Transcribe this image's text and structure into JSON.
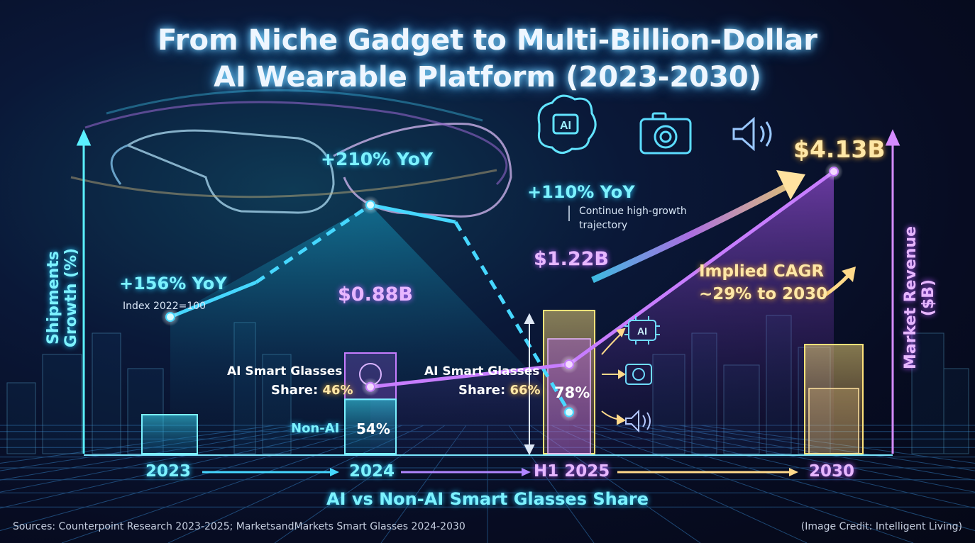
{
  "title_line1": "From Niche Gadget to Multi-Billion-Dollar",
  "title_line2": "AI Wearable Platform (2023-2030)",
  "left_axis_label": "Shipments Growth (%)",
  "right_axis_label": "Market Revenue ($B)",
  "x_axis_title": "AI vs Non-AI Smart Glasses Share",
  "sources": "Sources: Counterpoint Research 2023-2025; MarketsandMarkets Smart Glasses 2024-2030",
  "credit": "(Image Credit: Intelligent Living)",
  "cagr_line1": "Implied CAGR",
  "cagr_line2": "~29% to 2030",
  "growth_note": "Continue high-growth",
  "growth_note2": "trajectory",
  "index_note": "Index 2022=100",
  "icons": [
    "ai-chip-icon",
    "camera-icon",
    "speaker-icon",
    "brain-icon"
  ],
  "colors": {
    "growth": "#46d7ff",
    "revenue": "#c77dff",
    "cagr": "#ffd98a",
    "share": "#ffe27a"
  },
  "chart_data": {
    "type": "line",
    "categories": [
      "2023",
      "2024",
      "H1 2025",
      "2030"
    ],
    "series": [
      {
        "axis": "left",
        "values": [
          156,
          210,
          110,
          null
        ],
        "labels": [
          "+156% YoY",
          "+210% YoY",
          "+110% YoY",
          ""
        ]
      },
      {
        "axis": "right",
        "values": [
          null,
          0.88,
          1.22,
          4.13
        ],
        "labels": [
          "",
          "$0.88B",
          "$1.22B",
          "$4.13B"
        ]
      }
    ],
    "share_bars": [
      {
        "category": "2024",
        "ai_label": "AI Smart Glasses",
        "ai_prefix": "Share: ",
        "ai_value": "46%",
        "non_ai_label": "Non-AI",
        "non_ai_value": "54%"
      },
      {
        "category": "H1 2025",
        "ai_label": "AI Smart Glasses",
        "ai_prefix": "Share: ",
        "ai_value": "66%",
        "total_value": "78%"
      }
    ]
  }
}
